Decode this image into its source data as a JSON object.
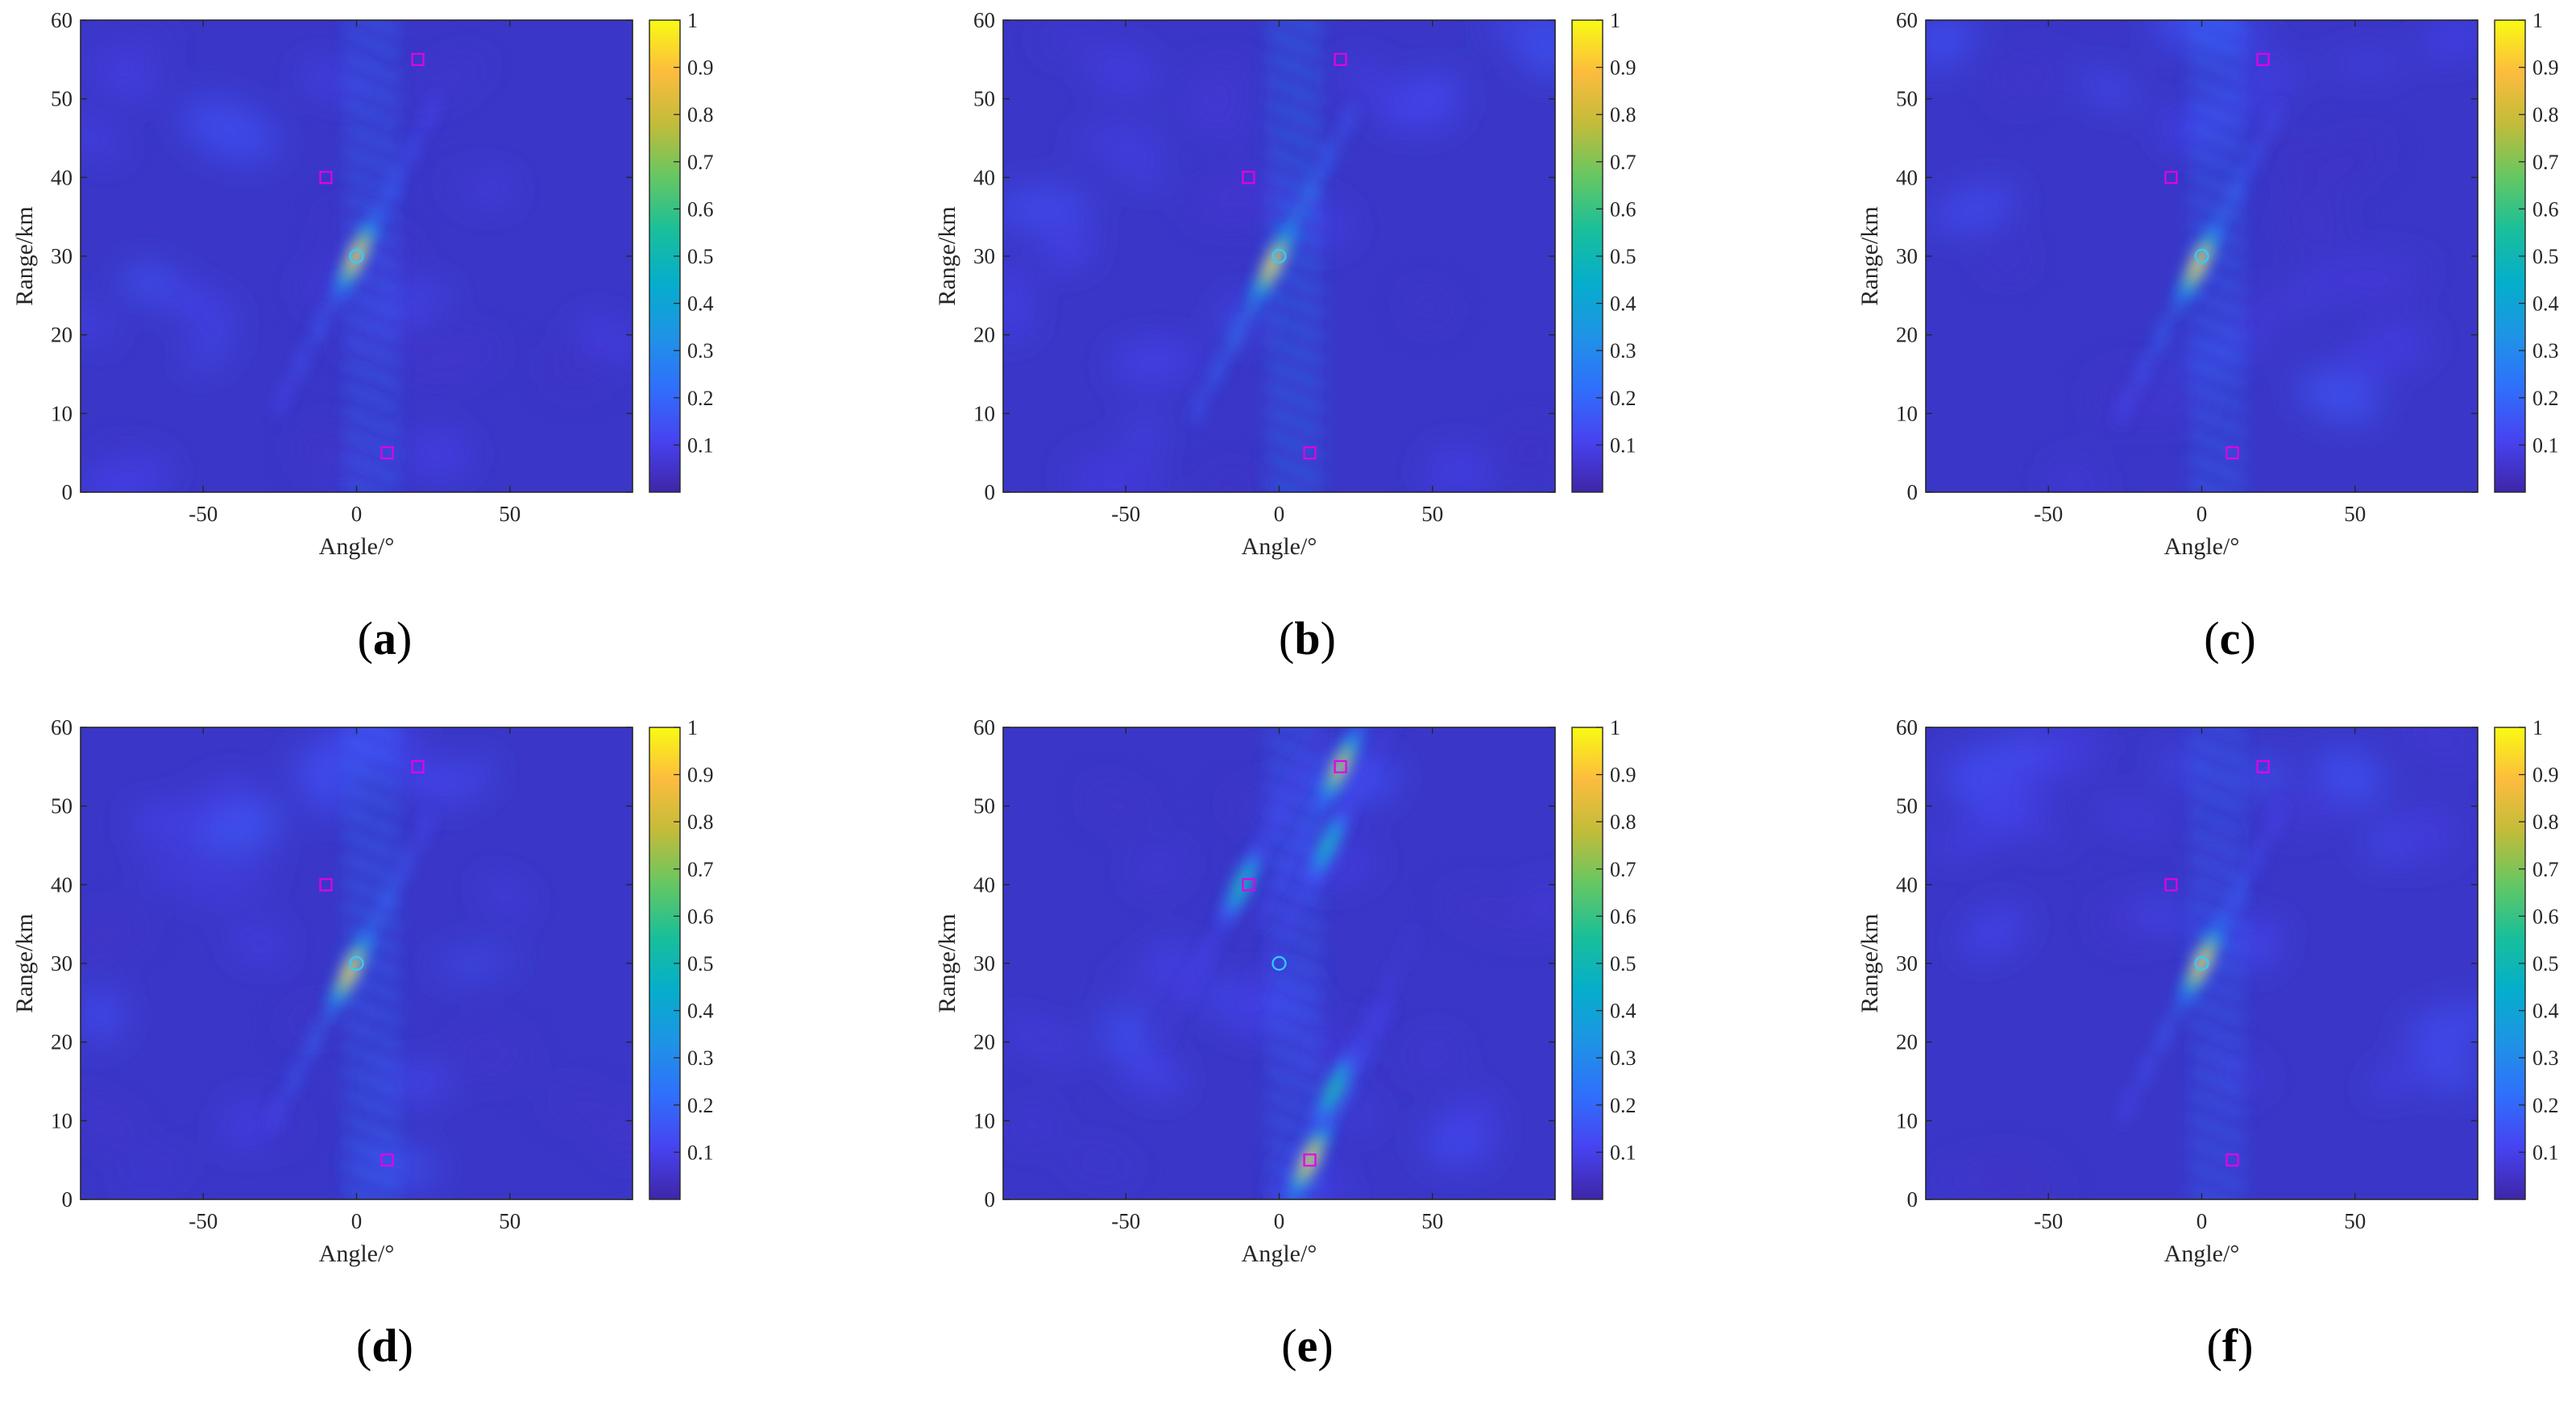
{
  "figure": {
    "colorbar_ticks": [
      "0.1",
      "0.2",
      "0.3",
      "0.4",
      "0.5",
      "0.6",
      "0.7",
      "0.8",
      "0.9",
      "1"
    ],
    "colormap": [
      "#3e26a8",
      "#4743f1",
      "#2f70fc",
      "#1e94e5",
      "#05aecb",
      "#19bf9a",
      "#64c763",
      "#c1bc3a",
      "#fcbc3e",
      "#f9fa13"
    ],
    "background_color": "#3a37c8",
    "marker_colors": {
      "target": "#e600e6",
      "reference": "#33ccff"
    }
  },
  "chart_data": [
    {
      "type": "heatmap",
      "panel_label": "(a)",
      "xlabel": "Angle/°",
      "ylabel": "Range/km",
      "xlim": [
        -90,
        90
      ],
      "ylim": [
        0,
        60
      ],
      "xticks": [
        "-50",
        "0",
        "50"
      ],
      "yticks": [
        "0",
        "10",
        "20",
        "30",
        "40",
        "50",
        "60"
      ],
      "colorbar_range": [
        0,
        1
      ],
      "squares": [
        {
          "angle": -10,
          "range": 40
        },
        {
          "angle": 20,
          "range": 55
        },
        {
          "angle": 10,
          "range": 5
        }
      ],
      "circles": [
        {
          "angle": 0,
          "range": 30
        }
      ],
      "peaks": [
        {
          "angle": 0,
          "range": 30,
          "value": 1.0
        }
      ],
      "sidelobe_level": 0.3
    },
    {
      "type": "heatmap",
      "panel_label": "(b)",
      "xlabel": "Angle/°",
      "ylabel": "Range/km",
      "xlim": [
        -90,
        90
      ],
      "ylim": [
        0,
        60
      ],
      "xticks": [
        "-50",
        "0",
        "50"
      ],
      "yticks": [
        "0",
        "10",
        "20",
        "30",
        "40",
        "50",
        "60"
      ],
      "colorbar_range": [
        0,
        1
      ],
      "squares": [
        {
          "angle": -10,
          "range": 40
        },
        {
          "angle": 20,
          "range": 55
        },
        {
          "angle": 10,
          "range": 5
        }
      ],
      "circles": [
        {
          "angle": 0,
          "range": 30
        }
      ],
      "peaks": [
        {
          "angle": -2,
          "range": 29,
          "value": 1.0
        }
      ],
      "sidelobe_level": 0.45
    },
    {
      "type": "heatmap",
      "panel_label": "(c)",
      "xlabel": "Angle/°",
      "ylabel": "Range/km",
      "xlim": [
        -90,
        90
      ],
      "ylim": [
        0,
        60
      ],
      "xticks": [
        "-50",
        "0",
        "50"
      ],
      "yticks": [
        "0",
        "10",
        "20",
        "30",
        "40",
        "50",
        "60"
      ],
      "colorbar_range": [
        0,
        1
      ],
      "squares": [
        {
          "angle": -10,
          "range": 40
        },
        {
          "angle": 20,
          "range": 55
        },
        {
          "angle": 10,
          "range": 5
        }
      ],
      "circles": [
        {
          "angle": 0,
          "range": 30
        }
      ],
      "peaks": [
        {
          "angle": -1,
          "range": 29,
          "value": 1.0
        }
      ],
      "sidelobe_level": 0.35
    },
    {
      "type": "heatmap",
      "panel_label": "(d)",
      "xlabel": "Angle/°",
      "ylabel": "Range/km",
      "xlim": [
        -90,
        90
      ],
      "ylim": [
        0,
        60
      ],
      "xticks": [
        "-50",
        "0",
        "50"
      ],
      "yticks": [
        "0",
        "10",
        "20",
        "30",
        "40",
        "50",
        "60"
      ],
      "colorbar_range": [
        0,
        1
      ],
      "squares": [
        {
          "angle": -10,
          "range": 40
        },
        {
          "angle": 20,
          "range": 55
        },
        {
          "angle": 10,
          "range": 5
        }
      ],
      "circles": [
        {
          "angle": 0,
          "range": 30
        }
      ],
      "peaks": [
        {
          "angle": -2,
          "range": 29,
          "value": 1.0
        }
      ],
      "sidelobe_level": 0.35
    },
    {
      "type": "heatmap",
      "panel_label": "(e)",
      "xlabel": "Angle/°",
      "ylabel": "Range/km",
      "xlim": [
        -90,
        90
      ],
      "ylim": [
        0,
        60
      ],
      "xticks": [
        "-50",
        "0",
        "50"
      ],
      "yticks": [
        "0",
        "10",
        "20",
        "30",
        "40",
        "50",
        "60"
      ],
      "colorbar_range": [
        0,
        1
      ],
      "squares": [
        {
          "angle": -10,
          "range": 40
        },
        {
          "angle": 20,
          "range": 55
        },
        {
          "angle": 10,
          "range": 5
        }
      ],
      "circles": [
        {
          "angle": 0,
          "range": 30
        }
      ],
      "peaks": [
        {
          "angle": 10,
          "range": 5,
          "value": 1.0
        },
        {
          "angle": 20,
          "range": 55,
          "value": 0.9
        },
        {
          "angle": -12,
          "range": 40,
          "value": 0.6
        },
        {
          "angle": 16,
          "range": 45,
          "value": 0.55
        },
        {
          "angle": 18,
          "range": 14,
          "value": 0.6
        }
      ],
      "sidelobe_level": 0.3
    },
    {
      "type": "heatmap",
      "panel_label": "(f)",
      "xlabel": "Angle/°",
      "ylabel": "Range/km",
      "xlim": [
        -90,
        90
      ],
      "ylim": [
        0,
        60
      ],
      "xticks": [
        "-50",
        "0",
        "50"
      ],
      "yticks": [
        "0",
        "10",
        "20",
        "30",
        "40",
        "50",
        "60"
      ],
      "colorbar_range": [
        0,
        1
      ],
      "squares": [
        {
          "angle": -10,
          "range": 40
        },
        {
          "angle": 20,
          "range": 55
        },
        {
          "angle": 10,
          "range": 5
        }
      ],
      "circles": [
        {
          "angle": 0,
          "range": 30
        }
      ],
      "peaks": [
        {
          "angle": 0,
          "range": 30,
          "value": 1.0
        }
      ],
      "sidelobe_level": 0.3
    }
  ]
}
